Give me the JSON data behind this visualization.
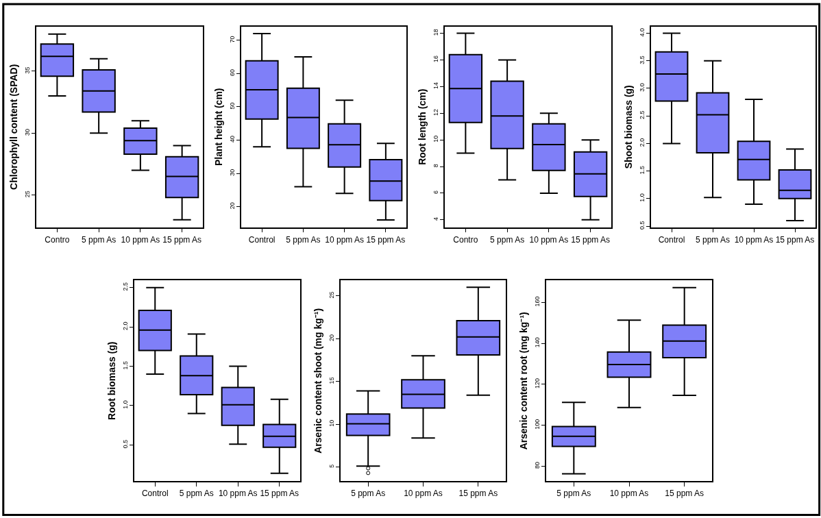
{
  "chart_data": [
    {
      "type": "box",
      "ylabel": "Chlorophyll content (SPAD)",
      "categories": [
        "Contro",
        "5 ppm As",
        "10 ppm As",
        "15 ppm As"
      ],
      "color": "#7f7ff8",
      "ylim": [
        22.4,
        38.6
      ],
      "yticks": [
        25,
        30,
        35
      ],
      "grid": false,
      "boxes": [
        {
          "low": 33.0,
          "q1": 34.6,
          "median": 36.2,
          "q3": 37.2,
          "high": 38.0
        },
        {
          "low": 30.0,
          "q1": 31.7,
          "median": 33.4,
          "q3": 35.1,
          "high": 36.0
        },
        {
          "low": 27.0,
          "q1": 28.3,
          "median": 29.4,
          "q3": 30.4,
          "high": 31.0
        },
        {
          "low": 23.0,
          "q1": 24.8,
          "median": 26.5,
          "q3": 28.1,
          "high": 29.0
        }
      ]
    },
    {
      "type": "box",
      "ylabel": "Plant height (cm)",
      "categories": [
        "Control",
        "5 ppm As",
        "10 ppm As",
        "15 ppm As"
      ],
      "color": "#7f7ff8",
      "ylim": [
        13.8,
        74.1
      ],
      "yticks": [
        20,
        30,
        40,
        50,
        60,
        70
      ],
      "grid": false,
      "boxes": [
        {
          "low": 38,
          "q1": 46.3,
          "median": 55.1,
          "q3": 63.8,
          "high": 72
        },
        {
          "low": 26,
          "q1": 37.5,
          "median": 46.8,
          "q3": 55.6,
          "high": 65
        },
        {
          "low": 24,
          "q1": 31.9,
          "median": 38.6,
          "q3": 44.9,
          "high": 52
        },
        {
          "low": 16,
          "q1": 21.8,
          "median": 27.7,
          "q3": 34.1,
          "high": 39
        }
      ]
    },
    {
      "type": "box",
      "ylabel": "Root length (cm)",
      "categories": [
        "Contro",
        "5 ppm As",
        "10 ppm As",
        "15 ppm As"
      ],
      "color": "#7f7ff8",
      "ylim": [
        3.44,
        18.5
      ],
      "yticks": [
        4,
        6,
        8,
        10,
        12,
        14,
        16,
        18
      ],
      "grid": false,
      "boxes": [
        {
          "low": 9,
          "q1": 11.3,
          "median": 13.85,
          "q3": 16.4,
          "high": 18
        },
        {
          "low": 7,
          "q1": 9.35,
          "median": 11.8,
          "q3": 14.4,
          "high": 16
        },
        {
          "low": 6,
          "q1": 7.7,
          "median": 9.65,
          "q3": 11.2,
          "high": 12
        },
        {
          "low": 4,
          "q1": 5.75,
          "median": 7.45,
          "q3": 9.1,
          "high": 10
        }
      ]
    },
    {
      "type": "box",
      "ylabel": "Shoot biomass (g)",
      "categories": [
        "Control",
        "5 ppm As",
        "10 ppm As",
        "15 ppm As"
      ],
      "color": "#7f7ff8",
      "ylim": [
        0.48,
        4.12
      ],
      "yticks": [
        {
          "value": 0.5,
          "label": "0.5"
        },
        {
          "value": 1.0,
          "label": "1.0"
        },
        {
          "value": 1.5,
          "label": "1.5"
        },
        {
          "value": 2.0,
          "label": "2.0"
        },
        {
          "value": 2.5,
          "label": "2.5"
        },
        {
          "value": 3.0,
          "label": "3.0"
        },
        {
          "value": 3.5,
          "label": "3.5"
        },
        {
          "value": 4.0,
          "label": "4.0"
        }
      ],
      "grid": false,
      "boxes": [
        {
          "low": 2.0,
          "q1": 2.77,
          "median": 3.26,
          "q3": 3.66,
          "high": 4.0
        },
        {
          "low": 1.02,
          "q1": 1.83,
          "median": 2.52,
          "q3": 2.92,
          "high": 3.5
        },
        {
          "low": 0.9,
          "q1": 1.34,
          "median": 1.71,
          "q3": 2.04,
          "high": 2.8
        },
        {
          "low": 0.6,
          "q1": 1.0,
          "median": 1.15,
          "q3": 1.52,
          "high": 1.9
        }
      ]
    },
    {
      "type": "box",
      "ylabel": "Root biomass (g)",
      "categories": [
        "Control",
        "5 ppm As",
        "10 ppm As",
        "15 ppm As"
      ],
      "color": "#7f7ff8",
      "ylim": [
        0.04,
        2.59
      ],
      "yticks": [
        0.5,
        {
          "value": 1.0,
          "label": "1.0"
        },
        1.5,
        {
          "value": 2.0,
          "label": "2.0"
        },
        2.5
      ],
      "grid": false,
      "boxes": [
        {
          "low": 1.4,
          "q1": 1.7,
          "median": 1.96,
          "q3": 2.21,
          "high": 2.5
        },
        {
          "low": 0.9,
          "q1": 1.14,
          "median": 1.38,
          "q3": 1.63,
          "high": 1.91
        },
        {
          "low": 0.51,
          "q1": 0.75,
          "median": 1.01,
          "q3": 1.23,
          "high": 1.5
        },
        {
          "low": 0.14,
          "q1": 0.47,
          "median": 0.61,
          "q3": 0.76,
          "high": 1.08
        }
      ]
    },
    {
      "type": "box",
      "ylabel": "Arsenic content shoot (mg kg⁻¹)",
      "categories": [
        "5 ppm As",
        "10 ppm As",
        "15 ppm As"
      ],
      "color": "#7f7ff8",
      "ylim": [
        3.35,
        26.8
      ],
      "yticks": [
        5,
        10,
        15,
        20,
        25
      ],
      "grid": false,
      "boxes": [
        {
          "low": 5.1,
          "q1": 8.7,
          "median": 10.05,
          "q3": 11.2,
          "high": 13.9,
          "outliers": [
            4.85,
            4.3
          ]
        },
        {
          "low": 8.4,
          "q1": 11.9,
          "median": 13.5,
          "q3": 15.2,
          "high": 18.0
        },
        {
          "low": 13.4,
          "q1": 18.1,
          "median": 20.2,
          "q3": 22.1,
          "high": 26.0
        }
      ]
    },
    {
      "type": "box",
      "ylabel": "Arsenic content root (mg kg⁻¹)",
      "categories": [
        "5 ppm As",
        "10 ppm As",
        "15 ppm As"
      ],
      "color": "#7f7ff8",
      "ylim": [
        72.7,
        170.7
      ],
      "yticks": [
        80,
        100,
        120,
        140,
        160
      ],
      "grid": false,
      "boxes": [
        {
          "low": 76.3,
          "q1": 89.7,
          "median": 94.6,
          "q3": 99.4,
          "high": 111.2
        },
        {
          "low": 108.7,
          "q1": 123.5,
          "median": 129.7,
          "q3": 135.8,
          "high": 151.3
        },
        {
          "low": 114.6,
          "q1": 133.0,
          "median": 141.1,
          "q3": 148.9,
          "high": 167.2
        }
      ]
    }
  ]
}
